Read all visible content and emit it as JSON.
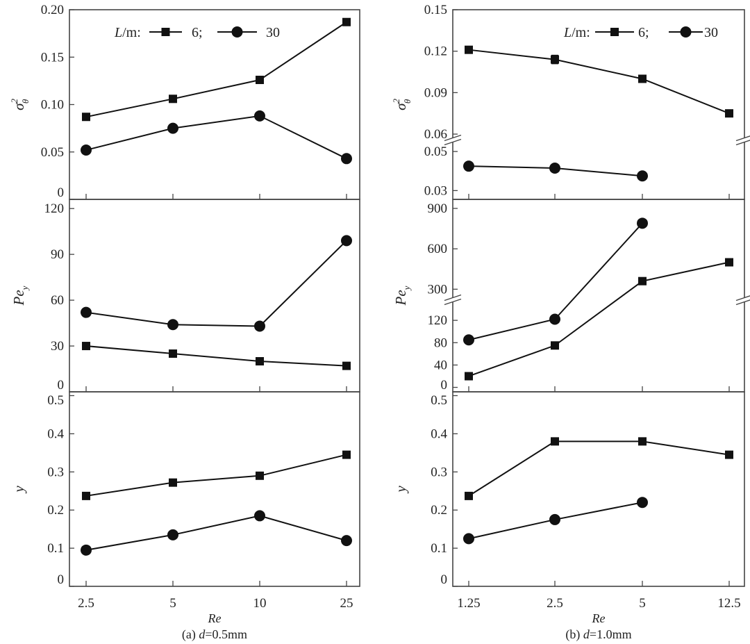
{
  "legend": {
    "prefix_italic": "L",
    "prefix_rest": "/m:",
    "series": [
      "6;",
      "30"
    ]
  },
  "captions": [
    {
      "xlabel": "Re",
      "pre": "(a) ",
      "var": "d",
      "post": "=0.5mm"
    },
    {
      "xlabel": "Re",
      "pre": "(b) ",
      "var": "d",
      "post": "=1.0mm"
    }
  ],
  "chart_data": [
    {
      "type": "line",
      "panel": "a",
      "row": 0,
      "categories": [
        "2.5",
        "5",
        "10",
        "25"
      ],
      "xlabel": "Re",
      "ylabel": {
        "main": "σ",
        "sup": "2",
        "sub": "θ"
      },
      "ylim": [
        0,
        0.2
      ],
      "yticks": [
        0,
        0.05,
        0.1,
        0.15,
        0.2
      ],
      "yticklabels": [
        "0",
        "0.05",
        "0.10",
        "0.15",
        "0.20"
      ],
      "series": [
        {
          "name": "6",
          "marker": "square",
          "values": [
            0.087,
            0.106,
            0.126,
            0.187
          ]
        },
        {
          "name": "30",
          "marker": "circle",
          "values": [
            0.052,
            0.075,
            0.088,
            0.043
          ]
        }
      ]
    },
    {
      "type": "line",
      "panel": "a",
      "row": 1,
      "categories": [
        "2.5",
        "5",
        "10",
        "25"
      ],
      "xlabel": "Re",
      "ylabel": {
        "main": "Pe",
        "sub": "y"
      },
      "ylim": [
        0,
        126
      ],
      "yticks": [
        0,
        30,
        60,
        90,
        120
      ],
      "yticklabels": [
        "0",
        "30",
        "60",
        "90",
        "120"
      ],
      "series": [
        {
          "name": "6",
          "marker": "square",
          "values": [
            30,
            25,
            20,
            17
          ]
        },
        {
          "name": "30",
          "marker": "circle",
          "values": [
            52,
            44,
            43,
            99
          ]
        }
      ]
    },
    {
      "type": "line",
      "panel": "a",
      "row": 2,
      "categories": [
        "2.5",
        "5",
        "10",
        "25"
      ],
      "xlabel": "Re",
      "ylabel": {
        "main": "y"
      },
      "ylim": [
        0,
        0.51
      ],
      "yticks": [
        0,
        0.1,
        0.2,
        0.3,
        0.4,
        0.5
      ],
      "yticklabels": [
        "0",
        "0.1",
        "0.2",
        "0.3",
        "0.4",
        "0.5"
      ],
      "series": [
        {
          "name": "6",
          "marker": "square",
          "values": [
            0.237,
            0.272,
            0.29,
            0.345
          ]
        },
        {
          "name": "30",
          "marker": "circle",
          "values": [
            0.095,
            0.135,
            0.185,
            0.12
          ]
        }
      ]
    },
    {
      "type": "line",
      "panel": "b",
      "row": 0,
      "categories": [
        "1.25",
        "2.5",
        "5",
        "12.5"
      ],
      "xlabel": "Re",
      "ylabel": {
        "main": "σ",
        "sup": "2",
        "sub": "θ"
      },
      "y_segments": [
        [
          0.0255,
          0.055
        ],
        [
          0.057,
          0.15
        ]
      ],
      "yticks": [
        0.03,
        0.05,
        0.06,
        0.09,
        0.12,
        0.15
      ],
      "yticklabels": [
        "0.03",
        "0.05",
        "0.06",
        "0.09",
        "0.12",
        "0.15"
      ],
      "series": [
        {
          "name": "6",
          "marker": "square",
          "values": [
            0.121,
            0.114,
            0.1,
            0.075
          ],
          "error": [
            null,
            0.003,
            null,
            null
          ]
        },
        {
          "name": "30",
          "marker": "circle",
          "values": [
            0.0425,
            0.0415,
            0.0375,
            null
          ]
        }
      ]
    },
    {
      "type": "line",
      "panel": "b",
      "row": 1,
      "categories": [
        "1.25",
        "2.5",
        "5",
        "12.5"
      ],
      "xlabel": "Re",
      "ylabel": {
        "main": "Pe",
        "sub": "y"
      },
      "y_segments": [
        [
          -8,
          150
        ],
        [
          250,
          967
        ]
      ],
      "yticks": [
        0,
        40,
        80,
        120,
        300,
        600,
        900
      ],
      "yticklabels": [
        "0",
        "40",
        "80",
        "120",
        "300",
        "600",
        "900"
      ],
      "series": [
        {
          "name": "6",
          "marker": "square",
          "values": [
            20,
            75,
            360,
            500
          ]
        },
        {
          "name": "30",
          "marker": "circle",
          "values": [
            85,
            122,
            790,
            null
          ]
        }
      ]
    },
    {
      "type": "line",
      "panel": "b",
      "row": 2,
      "categories": [
        "1.25",
        "2.5",
        "5",
        "12.5"
      ],
      "xlabel": "Re",
      "ylabel": {
        "main": "y"
      },
      "ylim": [
        0,
        0.51
      ],
      "yticks": [
        0,
        0.1,
        0.2,
        0.3,
        0.4,
        0.5
      ],
      "yticklabels": [
        "0",
        "0.1",
        "0.2",
        "0.3",
        "0.4",
        "0.5"
      ],
      "series": [
        {
          "name": "6",
          "marker": "square",
          "values": [
            0.237,
            0.38,
            0.38,
            0.345
          ]
        },
        {
          "name": "30",
          "marker": "circle",
          "values": [
            0.125,
            0.175,
            0.22,
            null
          ]
        }
      ]
    }
  ]
}
